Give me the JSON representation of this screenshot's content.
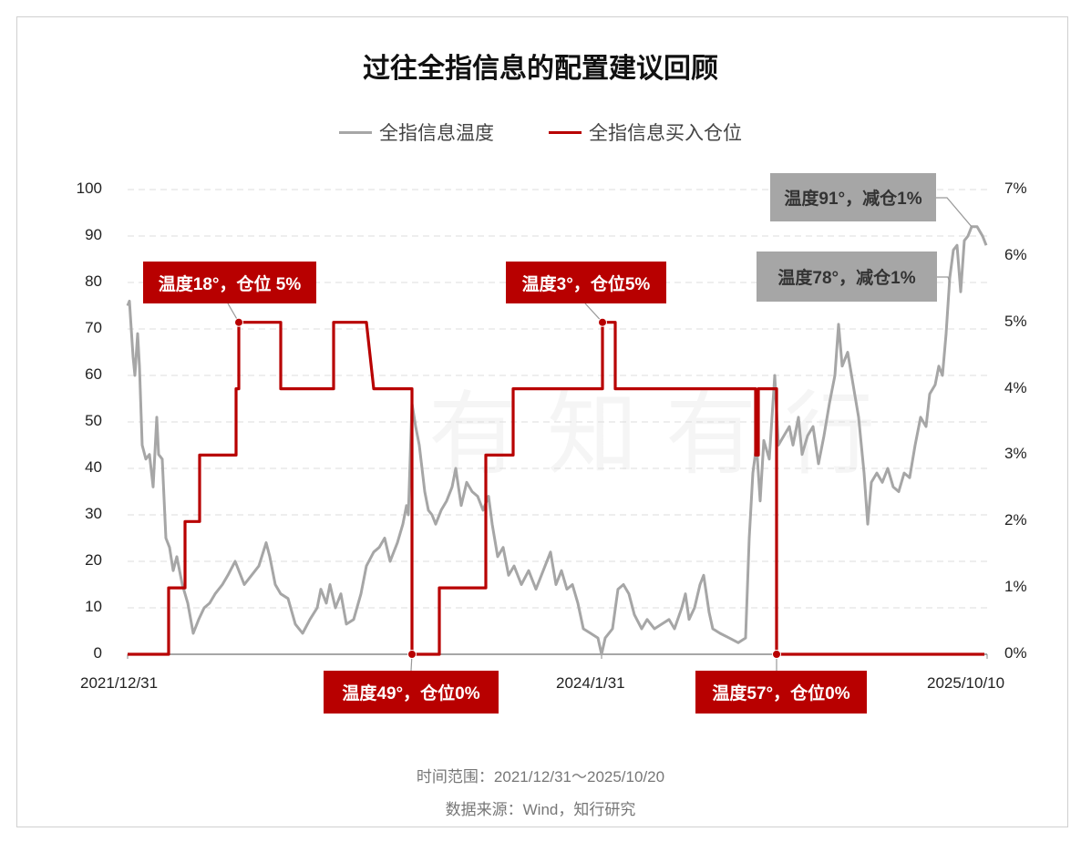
{
  "chart_data": {
    "type": "line",
    "title": "过往全指信息的配置建议回顾",
    "legend": [
      {
        "name": "全指信息温度",
        "color": "#a6a6a6"
      },
      {
        "name": "全指信息买入仓位",
        "color": "#b80000"
      }
    ],
    "legend_placement": "top-center",
    "x_range": [
      0,
      943
    ],
    "x_ticks": [
      {
        "x": 0,
        "label": "2021/12/31"
      },
      {
        "x": 520,
        "label": "2024/1/31"
      },
      {
        "x": 943,
        "label": "2025/10/10"
      }
    ],
    "y_left": {
      "range": [
        0,
        100
      ],
      "ticks": [
        "0",
        "10",
        "20",
        "30",
        "40",
        "50",
        "60",
        "70",
        "80",
        "90",
        "100"
      ]
    },
    "y_right": {
      "range": [
        0,
        7
      ],
      "ticks": [
        "0%",
        "1%",
        "2%",
        "3%",
        "4%",
        "5%",
        "6%",
        "7%"
      ]
    },
    "grid": true,
    "series": [
      {
        "name": "全指信息温度",
        "axis": "left",
        "points": [
          [
            0,
            75
          ],
          [
            2,
            76
          ],
          [
            6,
            64
          ],
          [
            8,
            60
          ],
          [
            11,
            69
          ],
          [
            13,
            62
          ],
          [
            16,
            45
          ],
          [
            20,
            42
          ],
          [
            24,
            43
          ],
          [
            28,
            36
          ],
          [
            32,
            51
          ],
          [
            34,
            43
          ],
          [
            38,
            42
          ],
          [
            42,
            25
          ],
          [
            46,
            23
          ],
          [
            50,
            18
          ],
          [
            54,
            21
          ],
          [
            60,
            15
          ],
          [
            66,
            11
          ],
          [
            72,
            4.5
          ],
          [
            78,
            7.5
          ],
          [
            84,
            10
          ],
          [
            90,
            11
          ],
          [
            96,
            13
          ],
          [
            104,
            15
          ],
          [
            110,
            17
          ],
          [
            118,
            20
          ],
          [
            122,
            18
          ],
          [
            128,
            15
          ],
          [
            136,
            17
          ],
          [
            144,
            19
          ],
          [
            152,
            24
          ],
          [
            156,
            21
          ],
          [
            162,
            15
          ],
          [
            168,
            13
          ],
          [
            176,
            12
          ],
          [
            184,
            6.5
          ],
          [
            192,
            4.5
          ],
          [
            200,
            7.5
          ],
          [
            208,
            10
          ],
          [
            212,
            14
          ],
          [
            218,
            11
          ],
          [
            222,
            15
          ],
          [
            228,
            10
          ],
          [
            234,
            13
          ],
          [
            240,
            6.5
          ],
          [
            248,
            7.5
          ],
          [
            256,
            13
          ],
          [
            262,
            19
          ],
          [
            270,
            22
          ],
          [
            276,
            23
          ],
          [
            282,
            25
          ],
          [
            288,
            20
          ],
          [
            296,
            24
          ],
          [
            302,
            28
          ],
          [
            306,
            32
          ],
          [
            308,
            30
          ],
          [
            312,
            54
          ],
          [
            316,
            49
          ],
          [
            320,
            45
          ],
          [
            326,
            35
          ],
          [
            330,
            31
          ],
          [
            334,
            30
          ],
          [
            338,
            28
          ],
          [
            344,
            31
          ],
          [
            350,
            33
          ],
          [
            356,
            36
          ],
          [
            360,
            40
          ],
          [
            366,
            32
          ],
          [
            372,
            37
          ],
          [
            378,
            35
          ],
          [
            384,
            34
          ],
          [
            390,
            31
          ],
          [
            396,
            34
          ],
          [
            400,
            28
          ],
          [
            406,
            21
          ],
          [
            412,
            23
          ],
          [
            418,
            17
          ],
          [
            424,
            19
          ],
          [
            432,
            15
          ],
          [
            440,
            18
          ],
          [
            448,
            14
          ],
          [
            458,
            19
          ],
          [
            464,
            22
          ],
          [
            470,
            15
          ],
          [
            476,
            18
          ],
          [
            482,
            14
          ],
          [
            488,
            15
          ],
          [
            494,
            11
          ],
          [
            500,
            5.5
          ],
          [
            508,
            4.5
          ],
          [
            516,
            3.5
          ],
          [
            520,
            0
          ],
          [
            524,
            3.5
          ],
          [
            532,
            5.5
          ],
          [
            538,
            14
          ],
          [
            544,
            15
          ],
          [
            550,
            13
          ],
          [
            556,
            8.5
          ],
          [
            564,
            5.5
          ],
          [
            570,
            7.5
          ],
          [
            578,
            5.5
          ],
          [
            586,
            6.5
          ],
          [
            594,
            7.5
          ],
          [
            600,
            5.5
          ],
          [
            608,
            10
          ],
          [
            612,
            13
          ],
          [
            616,
            7.5
          ],
          [
            622,
            10
          ],
          [
            628,
            15
          ],
          [
            632,
            17
          ],
          [
            638,
            9
          ],
          [
            642,
            5.5
          ],
          [
            650,
            4.5
          ],
          [
            660,
            3.5
          ],
          [
            670,
            2.5
          ],
          [
            678,
            3.5
          ],
          [
            682,
            25
          ],
          [
            686,
            39
          ],
          [
            690,
            45
          ],
          [
            694,
            33
          ],
          [
            698,
            46
          ],
          [
            704,
            42
          ],
          [
            710,
            60
          ],
          [
            714,
            45
          ],
          [
            720,
            47
          ],
          [
            726,
            49
          ],
          [
            730,
            45
          ],
          [
            736,
            51
          ],
          [
            740,
            43
          ],
          [
            746,
            47
          ],
          [
            752,
            49
          ],
          [
            758,
            41
          ],
          [
            764,
            47
          ],
          [
            770,
            54
          ],
          [
            776,
            60
          ],
          [
            780,
            71
          ],
          [
            784,
            62
          ],
          [
            790,
            65
          ],
          [
            796,
            58
          ],
          [
            802,
            51
          ],
          [
            808,
            39
          ],
          [
            812,
            28
          ],
          [
            816,
            37
          ],
          [
            822,
            39
          ],
          [
            828,
            37
          ],
          [
            834,
            40
          ],
          [
            840,
            36
          ],
          [
            846,
            35
          ],
          [
            852,
            39
          ],
          [
            858,
            38
          ],
          [
            864,
            45
          ],
          [
            870,
            51
          ],
          [
            876,
            49
          ],
          [
            880,
            56
          ],
          [
            886,
            58
          ],
          [
            890,
            62
          ],
          [
            894,
            60
          ],
          [
            898,
            69
          ],
          [
            902,
            81
          ],
          [
            906,
            87
          ],
          [
            910,
            88
          ],
          [
            914,
            78
          ],
          [
            918,
            89
          ],
          [
            922,
            90
          ],
          [
            926,
            92
          ],
          [
            932,
            92
          ],
          [
            938,
            90
          ],
          [
            942,
            88
          ]
        ]
      },
      {
        "name": "全指信息买入仓位",
        "axis": "right",
        "unit": "%",
        "points": [
          [
            0,
            0
          ],
          [
            45,
            0
          ],
          [
            45,
            1
          ],
          [
            63,
            1
          ],
          [
            63,
            2
          ],
          [
            79,
            2
          ],
          [
            79,
            3
          ],
          [
            119,
            3
          ],
          [
            119,
            4
          ],
          [
            122,
            4
          ],
          [
            122,
            5
          ],
          [
            168,
            5
          ],
          [
            168,
            4
          ],
          [
            226,
            4
          ],
          [
            226,
            5
          ],
          [
            262,
            5
          ],
          [
            270,
            4
          ],
          [
            312,
            4
          ],
          [
            312,
            0
          ],
          [
            342,
            0
          ],
          [
            342,
            1
          ],
          [
            393,
            1
          ],
          [
            393,
            3
          ],
          [
            423,
            3
          ],
          [
            423,
            4
          ],
          [
            521,
            4
          ],
          [
            521,
            5
          ],
          [
            535,
            5
          ],
          [
            535,
            4
          ],
          [
            689,
            4
          ],
          [
            689,
            3
          ],
          [
            692,
            3
          ],
          [
            692,
            4
          ],
          [
            712,
            4
          ],
          [
            712,
            0
          ],
          [
            940,
            0
          ]
        ]
      }
    ],
    "annotations": [
      {
        "text": "温度18°，仓位 5%",
        "style": "red",
        "x": 122,
        "y_right": 5
      },
      {
        "text": "温度49°，仓位0%",
        "style": "red",
        "x": 312,
        "y_right": 0
      },
      {
        "text": "温度3°，仓位5%",
        "style": "red",
        "x": 521,
        "y_right": 5
      },
      {
        "text": "温度57°，仓位0%",
        "style": "red",
        "x": 712,
        "y_right": 0
      },
      {
        "text": "温度91°，减仓1%",
        "style": "gray",
        "x": 926,
        "y_left": 92
      },
      {
        "text": "温度78°，减仓1%",
        "style": "gray",
        "x": 902,
        "y_left": 80
      }
    ],
    "colors": {
      "temperature": "#a6a6a6",
      "position": "#b80000",
      "grid": "#dddddd"
    }
  },
  "footer": {
    "time_range": "时间范围：2021/12/31～2025/10/20",
    "source": "数据来源：Wind，知行研究"
  },
  "watermark": "有知有行"
}
